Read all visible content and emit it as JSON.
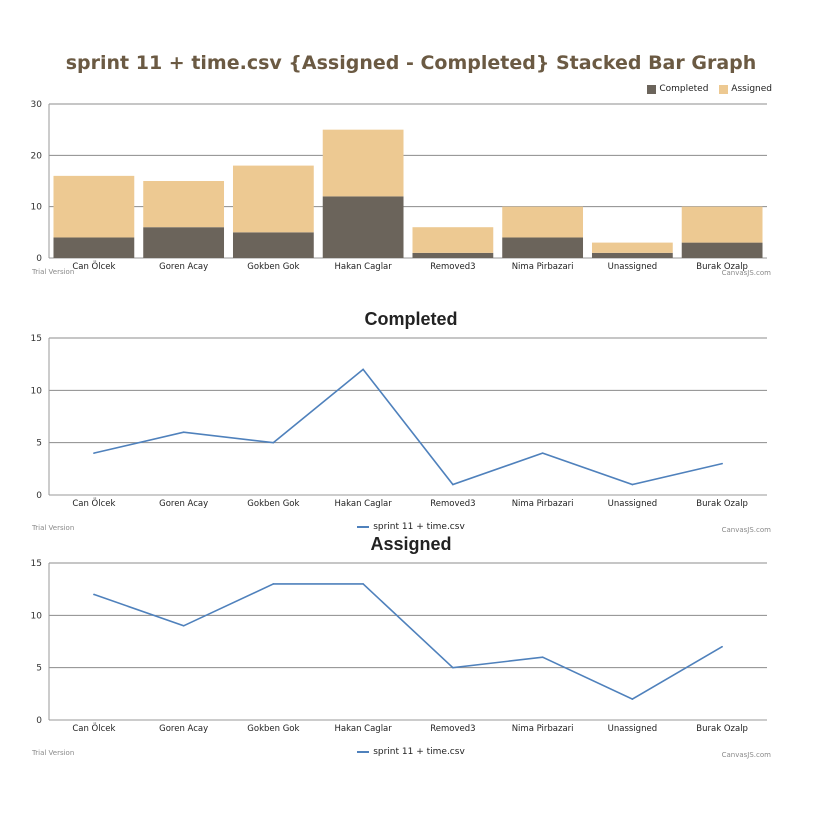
{
  "chart_data": [
    {
      "type": "bar",
      "stacked": true,
      "title": "sprint 11 + time.csv {Assigned - Completed} Stacked Bar Graph",
      "categories": [
        "Can Ölcek",
        "Goren Acay",
        "Gokben Gok",
        "Hakan Caglar",
        "Removed3",
        "Nima Pirbazari",
        "Unassigned",
        "Burak Ozalp"
      ],
      "series": [
        {
          "name": "Completed",
          "color": "#6b645b",
          "values": [
            4,
            6,
            5,
            12,
            1,
            4,
            1,
            3
          ]
        },
        {
          "name": "Assigned",
          "color": "#edc992",
          "values": [
            12,
            9,
            13,
            13,
            5,
            6,
            2,
            7
          ]
        }
      ],
      "ylim": [
        0,
        30
      ],
      "yticks": [
        0,
        10,
        20,
        30
      ],
      "grid": true,
      "legend_position": "top-right",
      "trial_text": "Trial Version",
      "credit_text": "CanvasJS.com"
    },
    {
      "type": "line",
      "title": "Completed",
      "categories": [
        "Can Ölcek",
        "Goren Acay",
        "Gokben Gok",
        "Hakan Caglar",
        "Removed3",
        "Nima Pirbazari",
        "Unassigned",
        "Burak Ozalp"
      ],
      "series": [
        {
          "name": "sprint 11 + time.csv",
          "color": "#4f81bc",
          "values": [
            4,
            6,
            5,
            12,
            1,
            4,
            1,
            3
          ]
        }
      ],
      "ylim": [
        0,
        15
      ],
      "yticks": [
        0,
        5,
        10,
        15
      ],
      "grid": true,
      "legend_position": "bottom",
      "trial_text": "Trial Version",
      "credit_text": "CanvasJS.com"
    },
    {
      "type": "line",
      "title": "Assigned",
      "categories": [
        "Can Ölcek",
        "Goren Acay",
        "Gokben Gok",
        "Hakan Caglar",
        "Removed3",
        "Nima Pirbazari",
        "Unassigned",
        "Burak Ozalp"
      ],
      "series": [
        {
          "name": "sprint 11 + time.csv",
          "color": "#4f81bc",
          "values": [
            12,
            9,
            13,
            13,
            5,
            6,
            2,
            7
          ]
        }
      ],
      "ylim": [
        0,
        15
      ],
      "yticks": [
        0,
        5,
        10,
        15
      ],
      "grid": true,
      "legend_position": "bottom",
      "trial_text": "Trial Version",
      "credit_text": "CanvasJS.com"
    }
  ]
}
